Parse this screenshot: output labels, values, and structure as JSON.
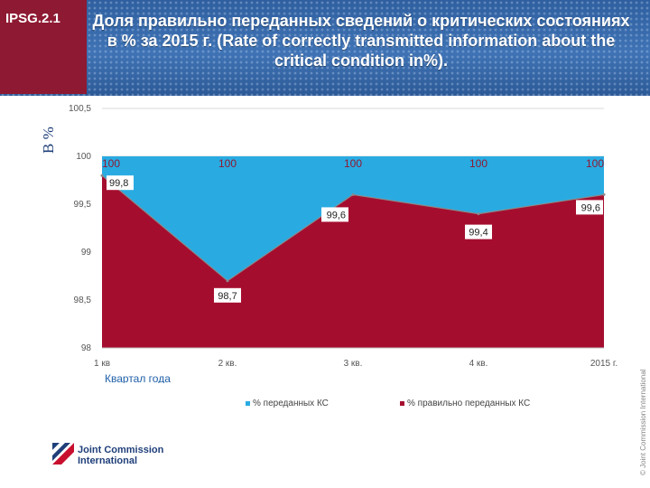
{
  "header": {
    "tag": "IPSG.2.1",
    "title": "Доля правильно переданных сведений о критических состояниях в % за 2015 г. (Rate of correctly transmitted information about the critical condition in%)."
  },
  "unit_label": "В %",
  "legend": {
    "sent": "% переданных КС",
    "correct": "% правильно переданных КС"
  },
  "logo": {
    "line1": "Joint Commission",
    "line2": "International"
  },
  "copyright": "© Joint Commission International",
  "colors": {
    "sent": "#29abe2",
    "correct": "#a50d2f",
    "header_bg": "#3366aa",
    "tag_bg": "#8e1932"
  },
  "chart_data": {
    "type": "area",
    "categories": [
      "1 кв",
      "2 кв.",
      "3 кв.",
      "4 кв.",
      "2015 г."
    ],
    "series": [
      {
        "name": "% переданных КС",
        "values": [
          100,
          100,
          100,
          100,
          100
        ]
      },
      {
        "name": "% правильно переданных КС",
        "values": [
          99.8,
          98.7,
          99.6,
          99.4,
          99.6
        ]
      }
    ],
    "top_labels": [
      "100",
      "100",
      "100",
      "100",
      "100"
    ],
    "value_labels": [
      "99,8",
      "98,7",
      "99,6",
      "99,4",
      "99,6"
    ],
    "y_tick_labels": [
      "98",
      "98,5",
      "99",
      "99,5",
      "100",
      "100,5"
    ],
    "y_ticks": [
      98,
      98.5,
      99,
      99.5,
      100,
      100.5
    ],
    "ylim": [
      98,
      100.5
    ],
    "xlabel": "Квартал года",
    "legend_position": "bottom"
  }
}
